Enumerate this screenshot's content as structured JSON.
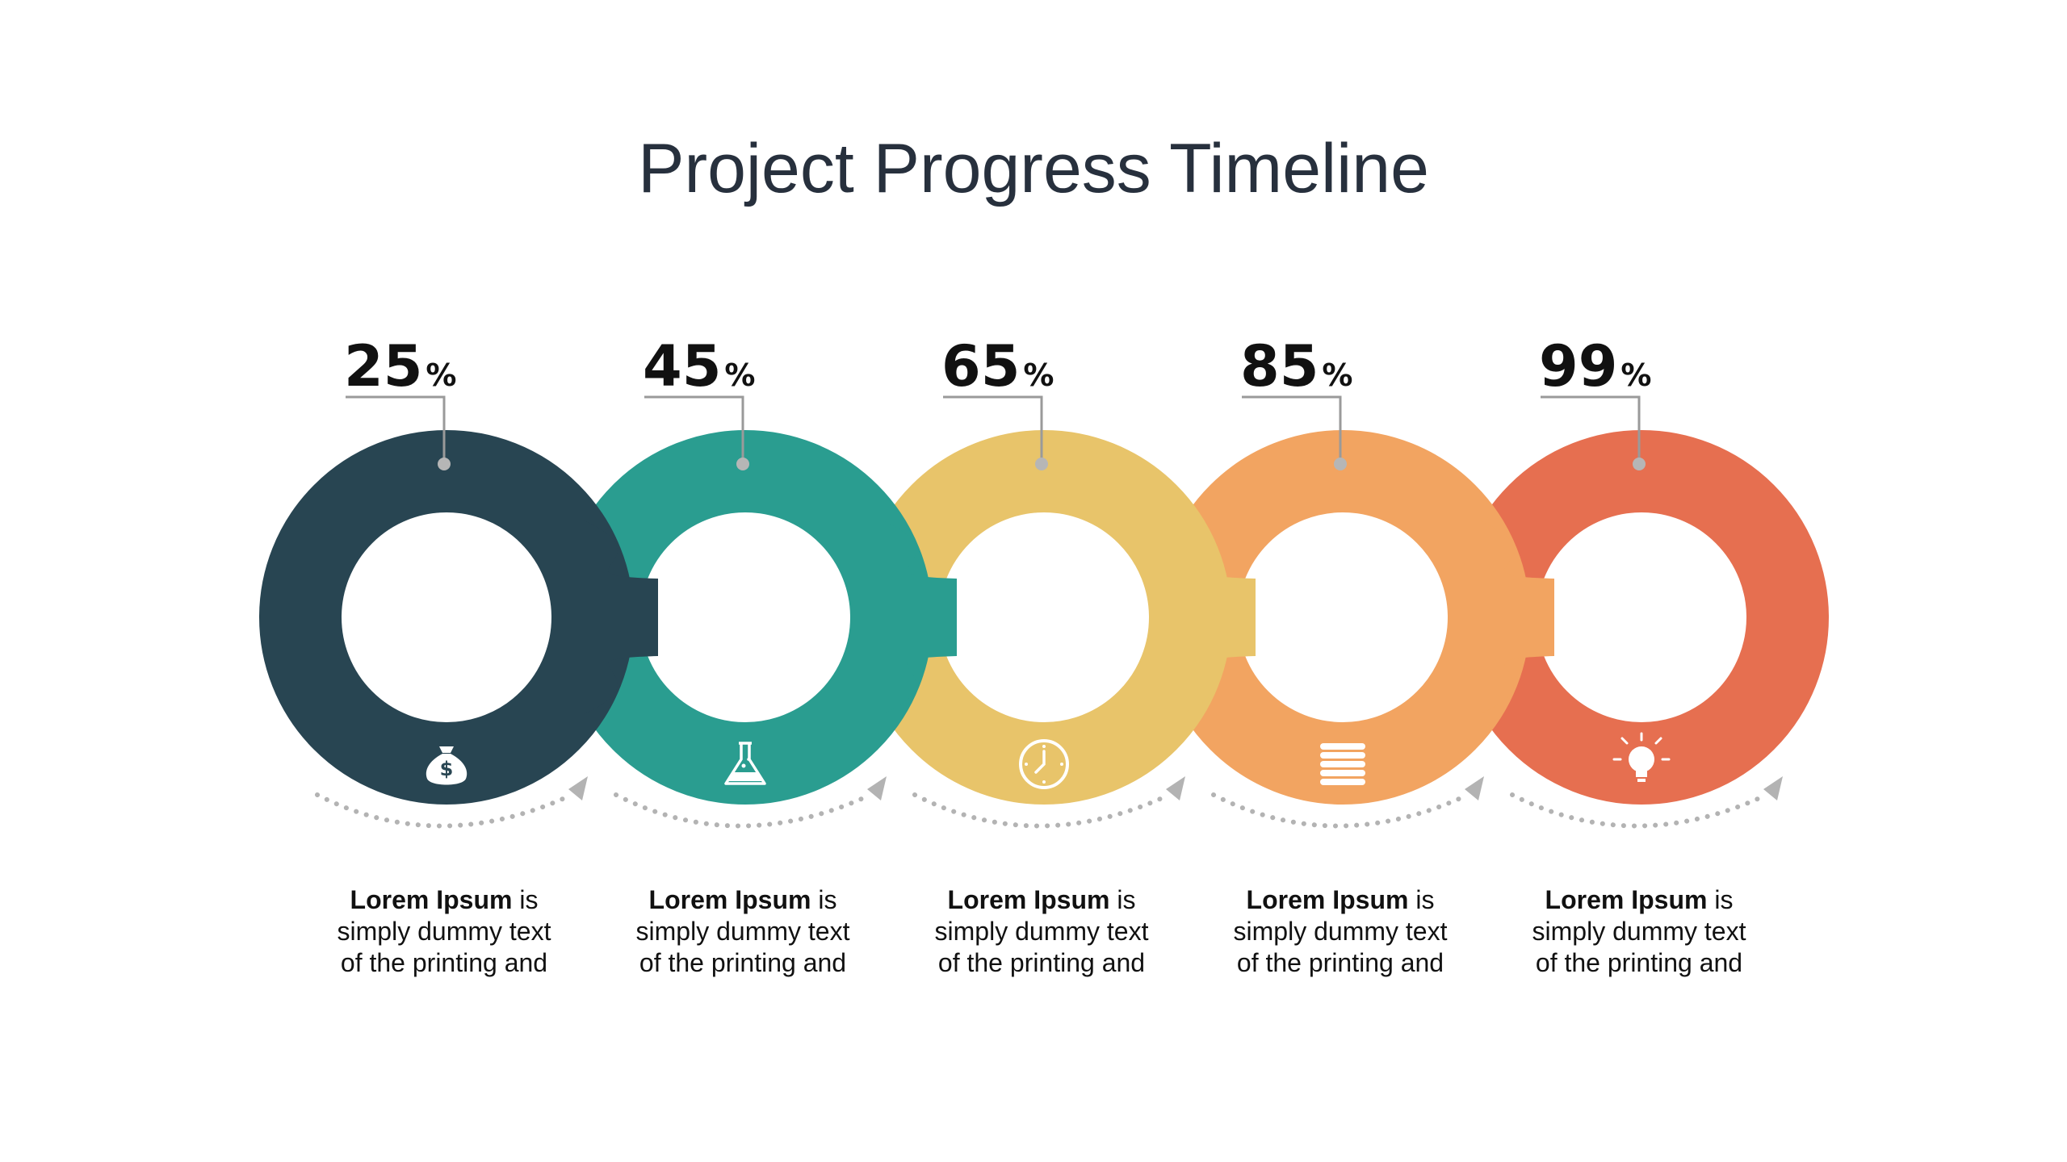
{
  "title": "Project Progress Timeline",
  "colors": {
    "title": "#27303d",
    "connector": "#9a9a9a",
    "arrow": "#b3b3b3"
  },
  "steps": [
    {
      "percent": "25",
      "symbol": "%",
      "icon": "money-bag-icon",
      "color": "#284552",
      "text_bold": "Lorem Ipsum",
      "text_rest": " is simply dummy text of the printing and"
    },
    {
      "percent": "45",
      "symbol": "%",
      "icon": "flask-icon",
      "color": "#2a9d90",
      "text_bold": "Lorem Ipsum",
      "text_rest": " is simply dummy text of the printing and"
    },
    {
      "percent": "65",
      "symbol": "%",
      "icon": "clock-icon",
      "color": "#e8c46a",
      "text_bold": "Lorem Ipsum",
      "text_rest": " is simply dummy text of the printing and"
    },
    {
      "percent": "85",
      "symbol": "%",
      "icon": "database-icon",
      "color": "#f2a461",
      "text_bold": "Lorem Ipsum",
      "text_rest": " is simply dummy text of the printing and"
    },
    {
      "percent": "99",
      "symbol": "%",
      "icon": "lightbulb-icon",
      "color": "#e66f50",
      "text_bold": "Lorem Ipsum",
      "text_rest": " is simply dummy text of the printing and"
    }
  ]
}
